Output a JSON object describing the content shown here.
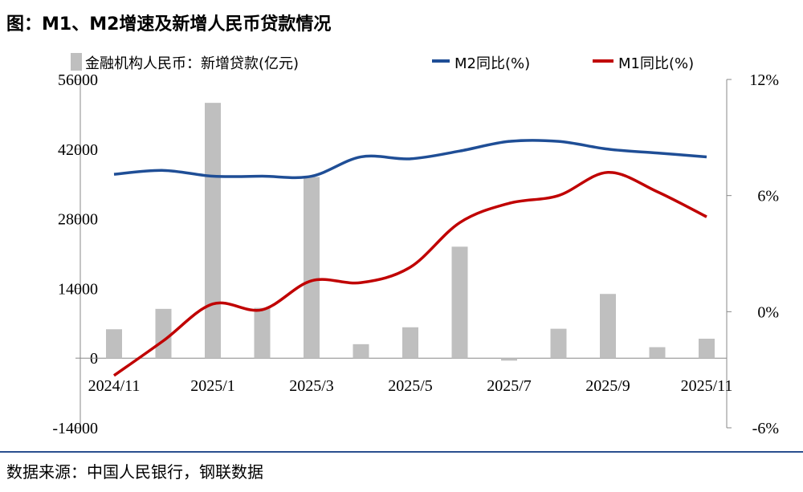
{
  "title": "图：M1、M2增速及新增人民币贷款情况",
  "source": "数据来源：中国人民银行，钢联数据",
  "chart_data": {
    "type": "bar+line",
    "title": "图：M1、M2增速及新增人民币贷款情况",
    "categories": [
      "2024/11",
      "2024/12",
      "2025/1",
      "2025/2",
      "2025/3",
      "2025/4",
      "2025/5",
      "2025/6",
      "2025/7",
      "2025/8",
      "2025/9",
      "2025/10",
      "2025/11"
    ],
    "x_tick_labels": [
      "2024/11",
      "2025/1",
      "2025/3",
      "2025/5",
      "2025/7",
      "2025/9",
      "2025/11"
    ],
    "left_axis": {
      "ylim": [
        -14000,
        56000
      ],
      "ticks": [
        "56000",
        "42000",
        "28000",
        "14000",
        "0",
        "-14000"
      ]
    },
    "right_axis": {
      "ylim": [
        -6,
        12
      ],
      "ticks": [
        "12%",
        "6%",
        "0%",
        "-6%"
      ]
    },
    "legend_position": "top",
    "grid": false,
    "series": [
      {
        "name": "金融机构人民币：新增贷款(亿元)",
        "type": "bar",
        "axis": "left",
        "color": "#bfbfbf",
        "values": [
          5800,
          9900,
          51300,
          10100,
          36400,
          2800,
          6200,
          22400,
          -500,
          5900,
          12900,
          2200,
          3900
        ]
      },
      {
        "name": "M2同比(%)",
        "type": "line",
        "axis": "right",
        "color": "#1f4e96",
        "values": [
          7.1,
          7.3,
          7.0,
          7.0,
          7.0,
          8.0,
          7.9,
          8.3,
          8.8,
          8.8,
          8.4,
          8.2,
          8.0
        ]
      },
      {
        "name": "M1同比(%)",
        "type": "line",
        "axis": "right",
        "color": "#c00000",
        "values": [
          -3.3,
          -1.5,
          0.4,
          0.1,
          1.6,
          1.5,
          2.3,
          4.6,
          5.6,
          6.0,
          7.2,
          6.2,
          4.9
        ]
      }
    ]
  }
}
